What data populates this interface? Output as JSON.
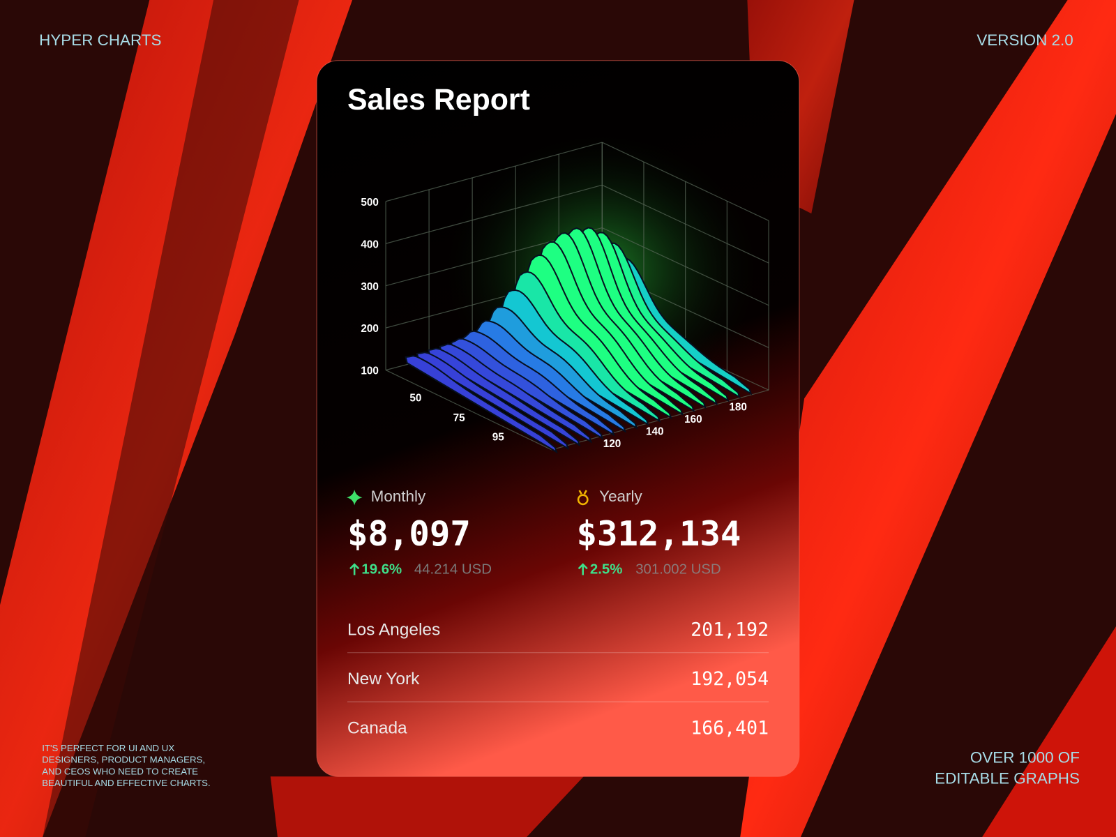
{
  "header": {
    "brand": "HYPER CHARTS",
    "version": "VERSION 2.0"
  },
  "card": {
    "title": "Sales Report",
    "chart": {
      "y_ticks": [
        500,
        400,
        300,
        200,
        100
      ],
      "x_ticks": [
        50,
        75,
        95
      ],
      "z_ticks": [
        120,
        140,
        160,
        180
      ]
    },
    "stats": [
      {
        "label": "Monthly",
        "value": "$8,097",
        "change": "19.6%",
        "secondary": "44.214 USD"
      },
      {
        "label": "Yearly",
        "value": "$312,134",
        "change": "2.5%",
        "secondary": "301.002 USD"
      }
    ],
    "regions": [
      {
        "name": "Los Angeles",
        "value": "201,192"
      },
      {
        "name": "New York",
        "value": "192,054"
      },
      {
        "name": "Canada",
        "value": "166,401"
      }
    ]
  },
  "footer": {
    "description": [
      "IT'S PERFECT FOR UI AND UX",
      "DESIGNERS, PRODUCT MANAGERS,",
      "AND CEOS WHO NEED TO CREATE",
      "BEAUTIFUL AND EFFECTIVE CHARTS."
    ],
    "tagline": [
      "OVER 1000 OF",
      "EDITABLE GRAPHS"
    ]
  }
}
